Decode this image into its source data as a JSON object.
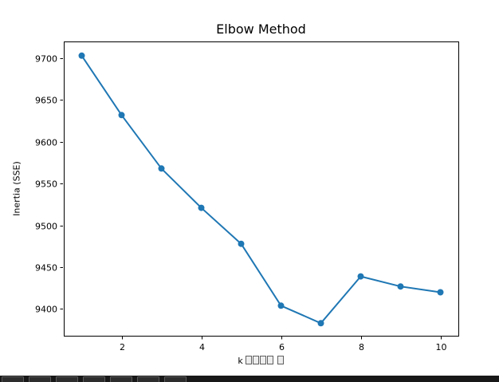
{
  "window": {
    "background": "#ffffff"
  },
  "chart_data": {
    "type": "line",
    "title": "Elbow Method",
    "xlabel": "k □□□□ □",
    "ylabel": "Inertia (SSE)",
    "x": [
      1,
      2,
      3,
      4,
      5,
      6,
      7,
      8,
      9,
      10
    ],
    "y": [
      9703,
      9632,
      9568,
      9521,
      9478,
      9404,
      9383,
      9439,
      9427,
      9420
    ],
    "xticks": [
      2,
      4,
      6,
      8,
      10
    ],
    "yticks": [
      9400,
      9450,
      9500,
      9550,
      9600,
      9650,
      9700
    ],
    "xlim": [
      0.55,
      10.45
    ],
    "ylim": [
      9368,
      9720
    ],
    "grid": false,
    "legend_position": "none",
    "marker": "o",
    "line_color": "#1f77b4",
    "marker_color": "#1f77b4",
    "axis_color": "#000000"
  },
  "bottom_toolbar": {
    "visible_button_count": 7,
    "bar_color": "#181818",
    "button_color": "#2d2d2d",
    "button_border_color": "#5a5a5a"
  }
}
